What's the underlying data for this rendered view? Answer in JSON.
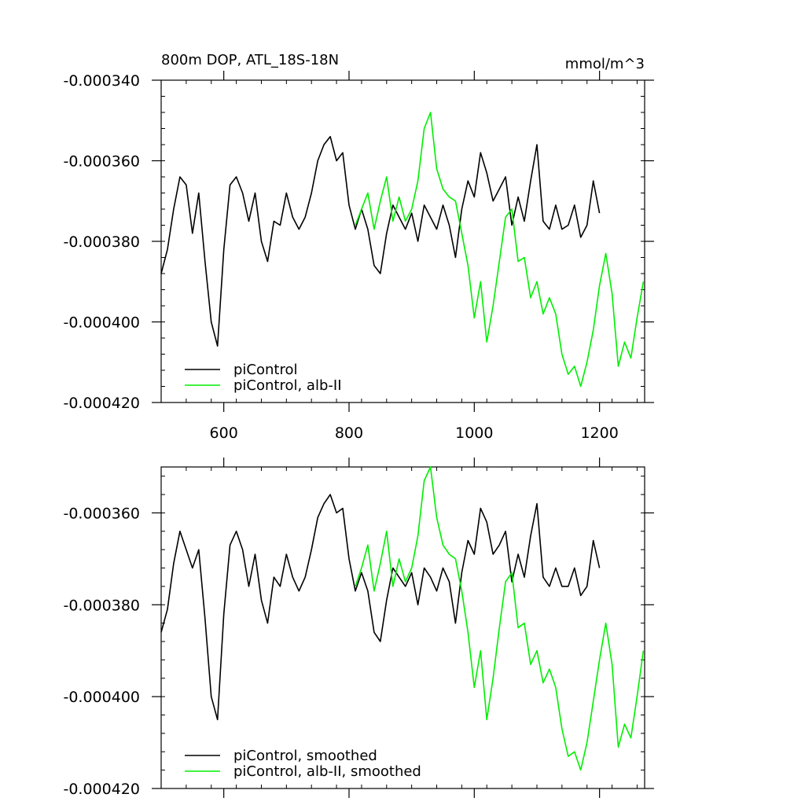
{
  "figure": {
    "title_left": "800m DOP, ATL_18S-18N",
    "title_right": "mmol/m^3"
  },
  "colors": {
    "piControl": "#000000",
    "alb_II": "#00ee00",
    "axis": "#000000"
  },
  "chart_data": [
    {
      "type": "line",
      "title": "800m DOP, ATL_18S-18N",
      "units": "mmol/m^3",
      "xlim": [
        500,
        1272
      ],
      "ylim": [
        -0.00042,
        -0.00034
      ],
      "x_ticks": [
        600,
        800,
        1000,
        1200
      ],
      "x_tick_labels": [
        "600",
        "800",
        "1000",
        "1200"
      ],
      "y_ticks": [
        -0.00034,
        -0.00036,
        -0.00038,
        -0.0004,
        -0.00042
      ],
      "y_tick_labels": [
        "-0.000340",
        "-0.000360",
        "-0.000380",
        "-0.000400",
        "-0.000420"
      ],
      "legend_position": "bottom-left",
      "legend": [
        "piControl",
        "piControl, alb-II"
      ],
      "series": [
        {
          "name": "piControl",
          "color": "#000000",
          "x": [
            500,
            510,
            520,
            530,
            540,
            550,
            560,
            570,
            580,
            590,
            600,
            610,
            620,
            630,
            640,
            650,
            660,
            670,
            680,
            690,
            700,
            710,
            720,
            730,
            740,
            750,
            760,
            770,
            780,
            790,
            800,
            810,
            820,
            830,
            840,
            850,
            860,
            870,
            880,
            890,
            900,
            910,
            920,
            930,
            940,
            950,
            960,
            970,
            980,
            990,
            1000,
            1010,
            1020,
            1030,
            1040,
            1050,
            1060,
            1070,
            1080,
            1090,
            1100,
            1110,
            1120,
            1130,
            1140,
            1150,
            1160,
            1170,
            1180,
            1190,
            1200
          ],
          "y": [
            -0.000388,
            -0.000382,
            -0.000372,
            -0.000364,
            -0.000366,
            -0.000378,
            -0.000368,
            -0.000385,
            -0.0004,
            -0.000406,
            -0.000382,
            -0.000366,
            -0.000364,
            -0.000368,
            -0.000375,
            -0.000368,
            -0.00038,
            -0.000385,
            -0.000375,
            -0.000376,
            -0.000368,
            -0.000374,
            -0.000377,
            -0.000374,
            -0.000368,
            -0.00036,
            -0.000356,
            -0.000354,
            -0.00036,
            -0.000358,
            -0.000371,
            -0.000377,
            -0.000372,
            -0.000377,
            -0.000386,
            -0.000388,
            -0.000378,
            -0.000371,
            -0.000374,
            -0.000377,
            -0.000373,
            -0.00038,
            -0.000371,
            -0.000374,
            -0.000377,
            -0.000371,
            -0.000376,
            -0.000384,
            -0.000372,
            -0.000365,
            -0.000369,
            -0.000358,
            -0.000363,
            -0.00037,
            -0.000367,
            -0.000364,
            -0.000376,
            -0.000369,
            -0.000375,
            -0.000365,
            -0.000356,
            -0.000375,
            -0.000377,
            -0.000371,
            -0.000377,
            -0.000376,
            -0.000371,
            -0.000379,
            -0.000376,
            -0.000365,
            -0.000373
          ]
        },
        {
          "name": "piControl, alb-II",
          "color": "#00ee00",
          "x": [
            810,
            820,
            830,
            840,
            850,
            860,
            870,
            880,
            890,
            900,
            910,
            920,
            930,
            940,
            950,
            960,
            970,
            980,
            990,
            1000,
            1010,
            1020,
            1030,
            1040,
            1050,
            1060,
            1070,
            1080,
            1090,
            1100,
            1110,
            1120,
            1130,
            1140,
            1150,
            1160,
            1170,
            1180,
            1190,
            1200,
            1210,
            1220,
            1230,
            1240,
            1250,
            1260,
            1270
          ],
          "y": [
            -0.000376,
            -0.000372,
            -0.000368,
            -0.000377,
            -0.00037,
            -0.000364,
            -0.000375,
            -0.000369,
            -0.000375,
            -0.000372,
            -0.000365,
            -0.000352,
            -0.000348,
            -0.000362,
            -0.000367,
            -0.000369,
            -0.00037,
            -0.000378,
            -0.000386,
            -0.000399,
            -0.00039,
            -0.000405,
            -0.000396,
            -0.000385,
            -0.000374,
            -0.000372,
            -0.000385,
            -0.000384,
            -0.000394,
            -0.00039,
            -0.000398,
            -0.000394,
            -0.000398,
            -0.000408,
            -0.000413,
            -0.000411,
            -0.000416,
            -0.00041,
            -0.000402,
            -0.000391,
            -0.000383,
            -0.000393,
            -0.000411,
            -0.000405,
            -0.000409,
            -0.000399,
            -0.00039
          ]
        }
      ]
    },
    {
      "type": "line",
      "xlim": [
        500,
        1272
      ],
      "ylim": [
        -0.00042,
        -0.00035
      ],
      "x_ticks": [
        600,
        800,
        1000,
        1200
      ],
      "x_tick_labels": [],
      "y_ticks": [
        -0.00036,
        -0.00038,
        -0.0004,
        -0.00042
      ],
      "y_tick_labels": [
        "-0.000360",
        "-0.000380",
        "-0.000400",
        "-0.000420"
      ],
      "legend_position": "bottom-left",
      "legend": [
        "piControl, smoothed",
        "piControl, alb-II, smoothed"
      ],
      "series": [
        {
          "name": "piControl, smoothed",
          "color": "#000000",
          "x": [
            500,
            510,
            520,
            530,
            540,
            550,
            560,
            570,
            580,
            590,
            600,
            610,
            620,
            630,
            640,
            650,
            660,
            670,
            680,
            690,
            700,
            710,
            720,
            730,
            740,
            750,
            760,
            770,
            780,
            790,
            800,
            810,
            820,
            830,
            840,
            850,
            860,
            870,
            880,
            890,
            900,
            910,
            920,
            930,
            940,
            950,
            960,
            970,
            980,
            990,
            1000,
            1010,
            1020,
            1030,
            1040,
            1050,
            1060,
            1070,
            1080,
            1090,
            1100,
            1110,
            1120,
            1130,
            1140,
            1150,
            1160,
            1170,
            1180,
            1190,
            1200
          ],
          "y": [
            -0.000386,
            -0.000381,
            -0.000371,
            -0.000364,
            -0.000368,
            -0.000372,
            -0.000368,
            -0.000383,
            -0.0004,
            -0.000405,
            -0.000382,
            -0.000367,
            -0.000364,
            -0.000368,
            -0.000376,
            -0.000369,
            -0.000379,
            -0.000384,
            -0.000374,
            -0.000376,
            -0.000369,
            -0.000374,
            -0.000377,
            -0.000374,
            -0.000368,
            -0.000361,
            -0.000358,
            -0.000356,
            -0.00036,
            -0.000359,
            -0.00037,
            -0.000377,
            -0.000373,
            -0.000377,
            -0.000386,
            -0.000388,
            -0.000379,
            -0.000372,
            -0.000374,
            -0.000376,
            -0.000373,
            -0.00038,
            -0.000372,
            -0.000374,
            -0.000377,
            -0.000372,
            -0.000375,
            -0.000384,
            -0.000373,
            -0.000366,
            -0.000369,
            -0.000359,
            -0.000362,
            -0.000369,
            -0.000367,
            -0.000364,
            -0.000375,
            -0.000369,
            -0.000374,
            -0.000365,
            -0.000358,
            -0.000374,
            -0.000376,
            -0.000372,
            -0.000376,
            -0.000376,
            -0.000372,
            -0.000378,
            -0.000376,
            -0.000366,
            -0.000372
          ]
        },
        {
          "name": "piControl, alb-II, smoothed",
          "color": "#00ee00",
          "x": [
            810,
            820,
            830,
            840,
            850,
            860,
            870,
            880,
            890,
            900,
            910,
            920,
            930,
            940,
            950,
            960,
            970,
            980,
            990,
            1000,
            1010,
            1020,
            1030,
            1040,
            1050,
            1060,
            1070,
            1080,
            1090,
            1100,
            1110,
            1120,
            1130,
            1140,
            1150,
            1160,
            1170,
            1180,
            1190,
            1200,
            1210,
            1220,
            1230,
            1240,
            1250,
            1260,
            1270
          ],
          "y": [
            -0.000376,
            -0.000372,
            -0.000367,
            -0.000377,
            -0.000371,
            -0.000364,
            -0.000376,
            -0.00037,
            -0.000375,
            -0.000372,
            -0.000365,
            -0.000353,
            -0.00035,
            -0.000361,
            -0.000367,
            -0.000369,
            -0.00037,
            -0.000377,
            -0.000386,
            -0.000398,
            -0.00039,
            -0.000405,
            -0.000396,
            -0.000385,
            -0.000375,
            -0.000373,
            -0.000385,
            -0.000384,
            -0.000393,
            -0.00039,
            -0.000397,
            -0.000394,
            -0.000398,
            -0.000407,
            -0.000413,
            -0.000412,
            -0.000416,
            -0.00041,
            -0.000401,
            -0.000392,
            -0.000384,
            -0.000393,
            -0.000411,
            -0.000406,
            -0.000409,
            -0.0004,
            -0.00039
          ]
        }
      ]
    }
  ]
}
